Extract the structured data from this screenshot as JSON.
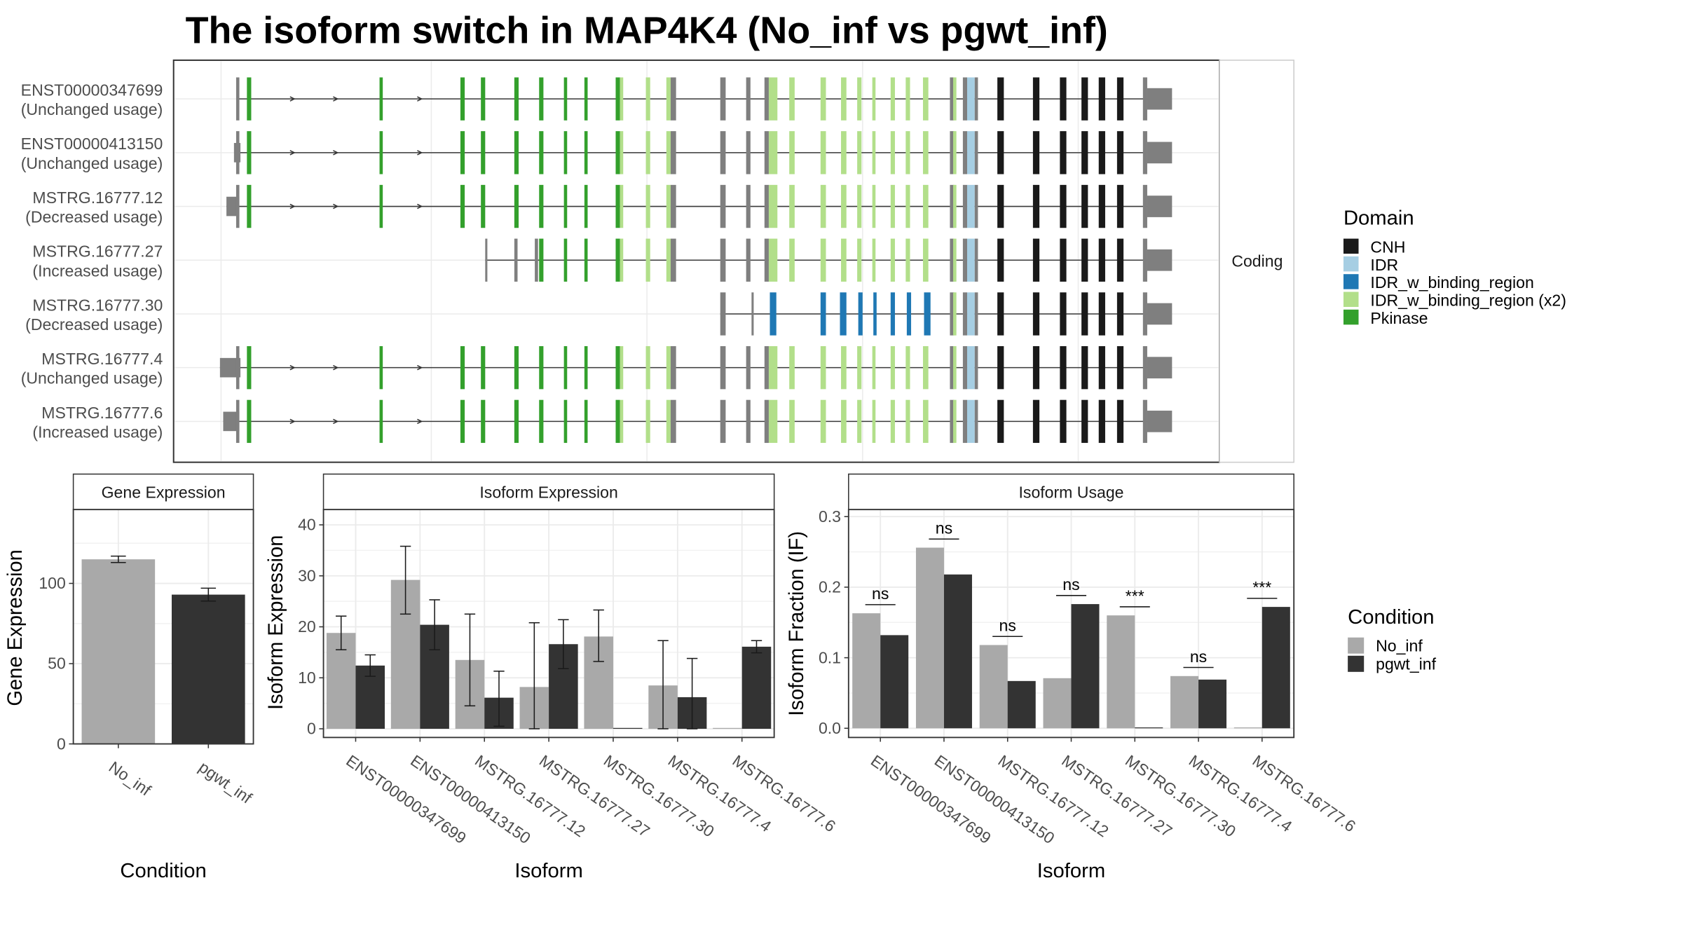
{
  "title": "The isoform switch in MAP4K4 (No_inf vs pgwt_inf)",
  "colors": {
    "no_inf": "#a9a9a9",
    "pgwt_inf": "#333333",
    "utr": "#7f7f7f",
    "domain_colors": [
      "#1a1a1a",
      "#a6cee3",
      "#1f78b4",
      "#b2df8a",
      "#33a02c"
    ]
  },
  "structure": {
    "strip_label": "Coding",
    "isoforms": [
      {
        "id": "ENST00000347699",
        "usage": "(Unchanged usage)"
      },
      {
        "id": "ENST00000413150",
        "usage": "(Unchanged usage)"
      },
      {
        "id": "MSTRG.16777.12",
        "usage": "(Decreased usage)"
      },
      {
        "id": "MSTRG.16777.27",
        "usage": "(Increased usage)"
      },
      {
        "id": "MSTRG.16777.30",
        "usage": "(Decreased usage)"
      },
      {
        "id": "MSTRG.16777.4",
        "usage": "(Unchanged usage)"
      },
      {
        "id": "MSTRG.16777.6",
        "usage": "(Increased usage)"
      }
    ]
  },
  "domain_legend": {
    "title": "Domain",
    "items": [
      "CNH",
      "IDR",
      "IDR_w_binding_region",
      "IDR_w_binding_region (x2)",
      "Pkinase"
    ]
  },
  "condition_legend": {
    "title": "Condition",
    "items": [
      "No_inf",
      "pgwt_inf"
    ]
  },
  "chart_data": [
    {
      "type": "bar",
      "title": "Gene Expression",
      "xlabel": "Condition",
      "ylabel": "Gene Expression",
      "categories": [
        "No_inf",
        "pgwt_inf"
      ],
      "values": [
        115,
        93
      ],
      "errors": [
        [
          113,
          117
        ],
        [
          89,
          97
        ]
      ],
      "ylim": [
        0,
        146
      ],
      "yticks": [
        "0",
        "50",
        "100"
      ]
    },
    {
      "type": "bar",
      "title": "Isoform Expression",
      "xlabel": "Isoform",
      "ylabel": "Isoform Expression",
      "categories": [
        "ENST00000347699",
        "ENST00000413150",
        "MSTRG.16777.12",
        "MSTRG.16777.27",
        "MSTRG.16777.30",
        "MSTRG.16777.4",
        "MSTRG.16777.6"
      ],
      "series": [
        {
          "name": "No_inf",
          "values": [
            18.8,
            29.2,
            13.5,
            8.2,
            18.1,
            8.5,
            0.1
          ],
          "errors": [
            [
              15.5,
              22.1
            ],
            [
              22.5,
              35.8
            ],
            [
              4.5,
              22.5
            ],
            [
              0,
              20.8
            ],
            [
              13.2,
              23.3
            ],
            [
              0,
              17.3
            ],
            [
              0,
              0
            ]
          ]
        },
        {
          "name": "pgwt_inf",
          "values": [
            12.4,
            20.4,
            6.1,
            16.6,
            0,
            6.2,
            16.1
          ],
          "errors": [
            [
              10.3,
              14.5
            ],
            [
              15.5,
              25.3
            ],
            [
              0.5,
              11.3
            ],
            [
              11.8,
              21.4
            ],
            [
              0,
              0
            ],
            [
              0,
              13.8
            ],
            [
              14.9,
              17.3
            ]
          ]
        }
      ],
      "ylim": [
        -1.7,
        43
      ],
      "yticks": [
        "0",
        "10",
        "20",
        "30",
        "40"
      ]
    },
    {
      "type": "bar",
      "title": "Isoform Usage",
      "xlabel": "Isoform",
      "ylabel": "Isoform Fraction (IF)",
      "categories": [
        "ENST00000347699",
        "ENST00000413150",
        "MSTRG.16777.12",
        "MSTRG.16777.27",
        "MSTRG.16777.30",
        "MSTRG.16777.4",
        "MSTRG.16777.6"
      ],
      "series": [
        {
          "name": "No_inf",
          "values": [
            0.163,
            0.256,
            0.118,
            0.071,
            0.16,
            0.074,
            0.0
          ]
        },
        {
          "name": "pgwt_inf",
          "values": [
            0.132,
            0.218,
            0.067,
            0.176,
            0.0,
            0.069,
            0.172
          ]
        }
      ],
      "significance": [
        "ns",
        "ns",
        "ns",
        "ns",
        "***",
        "ns",
        "***"
      ],
      "ylim": [
        -0.013,
        0.31
      ],
      "yticks": [
        "0.0",
        "0.1",
        "0.2",
        "0.3"
      ]
    }
  ]
}
